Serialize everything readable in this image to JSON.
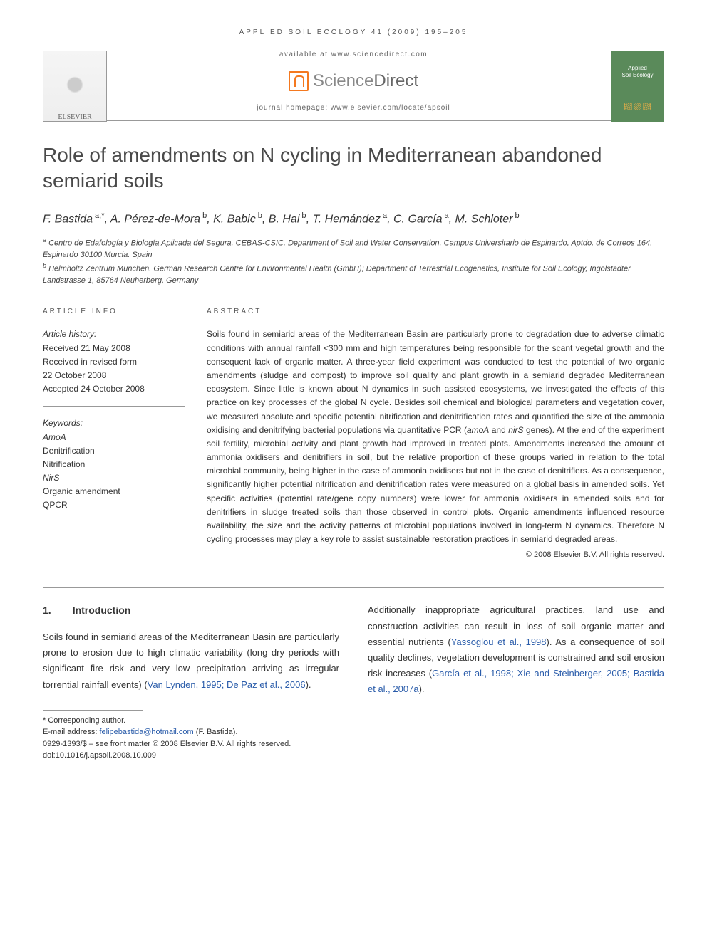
{
  "header": {
    "journal_ref": "APPLIED SOIL ECOLOGY 41 (2009) 195–205",
    "available": "available at www.sciencedirect.com",
    "sd_logo": "ScienceDirect",
    "homepage": "journal homepage: www.elsevier.com/locate/apsoil",
    "elsevier": "ELSEVIER",
    "journal_cover_line1": "Applied",
    "journal_cover_line2": "Soil Ecology"
  },
  "title": "Role of amendments on N cycling in Mediterranean abandoned semiarid soils",
  "authors_html": "F. Bastida<sup> a,*</sup>, A. Pérez-de-Mora<sup> b</sup>, K. Babic<sup> b</sup>, B. Hai<sup> b</sup>, T. Hernández<sup> a</sup>, C. García<sup> a</sup>, M. Schloter<sup> b</sup>",
  "affiliations": {
    "a": "Centro de Edafología y Biología Aplicada del Segura, CEBAS-CSIC. Department of Soil and Water Conservation, Campus Universitario de Espinardo, Aptdo. de Correos 164, Espinardo 30100 Murcia. Spain",
    "b": "Helmholtz Zentrum München. German Research Centre for Environmental Health (GmbH); Department of Terrestrial Ecogenetics, Institute for Soil Ecology, Ingolstädter Landstrasse 1, 85764 Neuherberg, Germany"
  },
  "article_info": {
    "heading": "ARTICLE INFO",
    "history_label": "Article history:",
    "received": "Received 21 May 2008",
    "revised1": "Received in revised form",
    "revised2": "22 October 2008",
    "accepted": "Accepted 24 October 2008",
    "keywords_label": "Keywords:",
    "keywords": [
      "AmoA",
      "Denitrification",
      "Nitrification",
      "NirS",
      "Organic amendment",
      "QPCR"
    ]
  },
  "abstract": {
    "heading": "ABSTRACT",
    "text": "Soils found in semiarid areas of the Mediterranean Basin are particularly prone to degradation due to adverse climatic conditions with annual rainfall <300 mm and high temperatures being responsible for the scant vegetal growth and the consequent lack of organic matter. A three-year field experiment was conducted to test the potential of two organic amendments (sludge and compost) to improve soil quality and plant growth in a semiarid degraded Mediterranean ecosystem. Since little is known about N dynamics in such assisted ecosystems, we investigated the effects of this practice on key processes of the global N cycle. Besides soil chemical and biological parameters and vegetation cover, we measured absolute and specific potential nitrification and denitrification rates and quantified the size of the ammonia oxidising and denitrifying bacterial populations via quantitative PCR (amoA and nirS genes). At the end of the experiment soil fertility, microbial activity and plant growth had improved in treated plots. Amendments increased the amount of ammonia oxidisers and denitrifiers in soil, but the relative proportion of these groups varied in relation to the total microbial community, being higher in the case of ammonia oxidisers but not in the case of denitrifiers. As a consequence, significantly higher potential nitrification and denitrification rates were measured on a global basis in amended soils. Yet specific activities (potential rate/gene copy numbers) were lower for ammonia oxidisers in amended soils and for denitrifiers in sludge treated soils than those observed in control plots. Organic amendments influenced resource availability, the size and the activity patterns of microbial populations involved in long-term N dynamics. Therefore N cycling processes may play a key role to assist sustainable restoration practices in semiarid degraded areas.",
    "copyright": "© 2008 Elsevier B.V. All rights reserved."
  },
  "body": {
    "section_num": "1.",
    "section_title": "Introduction",
    "col1_pre": "Soils found in semiarid areas of the Mediterranean Basin are particularly prone to erosion due to high climatic variability (long dry periods with significant fire risk and very low precipitation arriving as irregular torrential rainfall events) (",
    "col1_cite": "Van Lynden, 1995; De Paz et al., 2006",
    "col1_post": ").",
    "col2_pre": "Additionally inappropriate agricultural practices, land use and construction activities can result in loss of soil organic matter and essential nutrients (",
    "col2_cite1": "Yassoglou et al., 1998",
    "col2_mid": "). As a consequence of soil quality declines, vegetation development is constrained and soil erosion risk increases (",
    "col2_cite2": "García et al., 1998; Xie and Steinberger, 2005; Bastida et al., 2007a",
    "col2_post": ")."
  },
  "footnotes": {
    "corr": "* Corresponding author.",
    "email_label": "E-mail address: ",
    "email": "felipebastida@hotmail.com",
    "email_author": " (F. Bastida).",
    "issn": "0929-1393/$ – see front matter © 2008 Elsevier B.V. All rights reserved.",
    "doi": "doi:10.1016/j.apsoil.2008.10.009"
  },
  "colors": {
    "text": "#333333",
    "heading": "#4a4a4a",
    "cite": "#2a5caa",
    "cover_bg": "#5a8a5a",
    "orange": "#f47920",
    "rule": "#999999"
  }
}
